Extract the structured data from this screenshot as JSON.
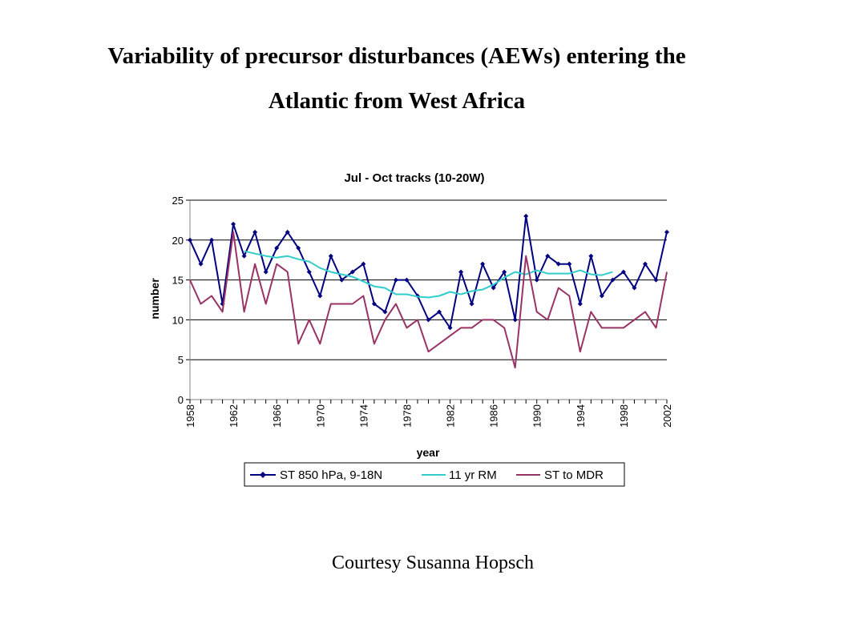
{
  "slide": {
    "title_line_1": "Variability of precursor disturbances (AEWs) entering the",
    "title_line_2": "Atlantic from West Africa",
    "courtesy": "Courtesy Susanna Hopsch"
  },
  "chart_data": {
    "type": "line",
    "title": "Jul - Oct tracks (10-20W)",
    "xlabel": "year",
    "ylabel": "number",
    "xlim": [
      1958,
      2002
    ],
    "ylim": [
      0,
      25
    ],
    "yticks": [
      0,
      5,
      10,
      15,
      20,
      25
    ],
    "xticks": [
      1958,
      1962,
      1966,
      1970,
      1974,
      1978,
      1982,
      1986,
      1990,
      1994,
      1998,
      2002
    ],
    "grid": "horizontal",
    "legend_position": "bottom",
    "series": [
      {
        "name": "ST 850 hPa, 9-18N",
        "color": "#000080",
        "marker": "diamond",
        "x": [
          1958,
          1959,
          1960,
          1961,
          1962,
          1963,
          1964,
          1965,
          1966,
          1967,
          1968,
          1969,
          1970,
          1971,
          1972,
          1973,
          1974,
          1975,
          1976,
          1977,
          1978,
          1979,
          1980,
          1981,
          1982,
          1983,
          1984,
          1985,
          1986,
          1987,
          1988,
          1989,
          1990,
          1991,
          1992,
          1993,
          1994,
          1995,
          1996,
          1997,
          1998,
          1999,
          2000,
          2001,
          2002
        ],
        "values": [
          20,
          17,
          20,
          12,
          22,
          18,
          21,
          16,
          19,
          21,
          19,
          16,
          13,
          18,
          15,
          16,
          17,
          12,
          11,
          15,
          15,
          13,
          10,
          11,
          9,
          16,
          12,
          17,
          14,
          16,
          10,
          23,
          15,
          18,
          17,
          17,
          12,
          18,
          13,
          15,
          16,
          14,
          17,
          15,
          21
        ]
      },
      {
        "name": "11 yr RM",
        "color": "#33CCCC",
        "marker": "none",
        "x": [
          1963,
          1964,
          1965,
          1966,
          1967,
          1968,
          1969,
          1970,
          1971,
          1972,
          1973,
          1974,
          1975,
          1976,
          1977,
          1978,
          1979,
          1980,
          1981,
          1982,
          1983,
          1984,
          1985,
          1986,
          1987,
          1988,
          1989,
          1990,
          1991,
          1992,
          1993,
          1994,
          1995,
          1996,
          1997
        ],
        "values": [
          18.6,
          18.3,
          18.0,
          17.8,
          18.0,
          17.6,
          17.3,
          16.5,
          16.0,
          15.7,
          15.4,
          14.8,
          14.2,
          14.0,
          13.2,
          13.2,
          12.9,
          12.8,
          13.0,
          13.5,
          13.2,
          13.6,
          13.8,
          14.4,
          15.3,
          16.0,
          15.7,
          16.2,
          15.8,
          15.8,
          15.8,
          16.2,
          15.7,
          15.6,
          16.0
        ]
      },
      {
        "name": "ST to MDR",
        "color": "#993366",
        "marker": "none",
        "x": [
          1958,
          1959,
          1960,
          1961,
          1962,
          1963,
          1964,
          1965,
          1966,
          1967,
          1968,
          1969,
          1970,
          1971,
          1972,
          1973,
          1974,
          1975,
          1976,
          1977,
          1978,
          1979,
          1980,
          1981,
          1982,
          1983,
          1984,
          1985,
          1986,
          1987,
          1988,
          1989,
          1990,
          1991,
          1992,
          1993,
          1994,
          1995,
          1996,
          1997,
          1998,
          1999,
          2000,
          2001,
          2002
        ],
        "values": [
          15,
          12,
          13,
          11,
          21,
          11,
          17,
          12,
          17,
          16,
          7,
          10,
          7,
          12,
          12,
          12,
          13,
          7,
          10,
          12,
          9,
          10,
          6,
          7,
          8,
          9,
          9,
          10,
          10,
          9,
          4,
          18,
          11,
          10,
          14,
          13,
          6,
          11,
          9,
          9,
          9,
          10,
          11,
          9,
          16
        ]
      }
    ]
  }
}
